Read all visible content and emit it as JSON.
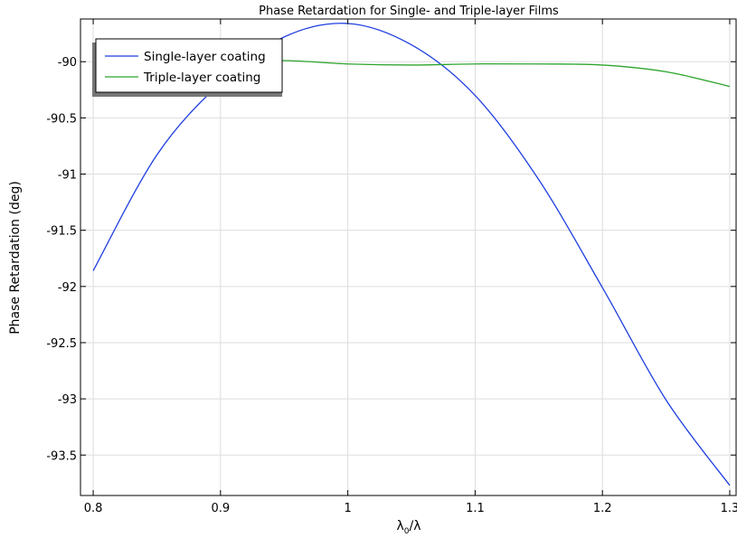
{
  "chart_data": {
    "type": "line",
    "title": "Phase Retardation for Single- and Triple-layer Films",
    "xlabel": "λ0/λ",
    "ylabel": "Phase Retardation (deg)",
    "xlim": [
      0.79,
      1.305
    ],
    "ylim": [
      -93.86,
      -89.62
    ],
    "x_ticks": [
      0.8,
      0.9,
      1.0,
      1.1,
      1.2,
      1.3
    ],
    "x_tick_labels": [
      "0.8",
      "0.9",
      "1",
      "1.1",
      "1.2",
      "1.3"
    ],
    "y_ticks": [
      -90,
      -90.5,
      -91,
      -91.5,
      -92,
      -92.5,
      -93,
      -93.5
    ],
    "y_tick_labels": [
      "-90",
      "-90.5",
      "-91",
      "-91.5",
      "-92",
      "-92.5",
      "-93",
      "-93.5"
    ],
    "grid": true,
    "legend_position": "top-left",
    "series": [
      {
        "name": "Single-layer coating",
        "color": "#1f3fe0",
        "x": [
          0.8,
          0.85,
          0.9,
          0.95,
          1.0,
          1.05,
          1.1,
          1.15,
          1.2,
          1.25,
          1.3
        ],
        "y": [
          -91.86,
          -90.83,
          -90.19,
          -89.78,
          -89.66,
          -89.85,
          -90.3,
          -91.05,
          -92.01,
          -93.01,
          -93.77
        ]
      },
      {
        "name": "Triple-layer coating",
        "color": "#2ca52c",
        "x": [
          0.8,
          0.85,
          0.9,
          0.95,
          1.0,
          1.05,
          1.1,
          1.15,
          1.2,
          1.25,
          1.3
        ],
        "y": [
          -90.27,
          -90.08,
          -90.01,
          -89.99,
          -90.02,
          -90.03,
          -90.02,
          -90.02,
          -90.03,
          -90.09,
          -90.22
        ]
      }
    ]
  }
}
